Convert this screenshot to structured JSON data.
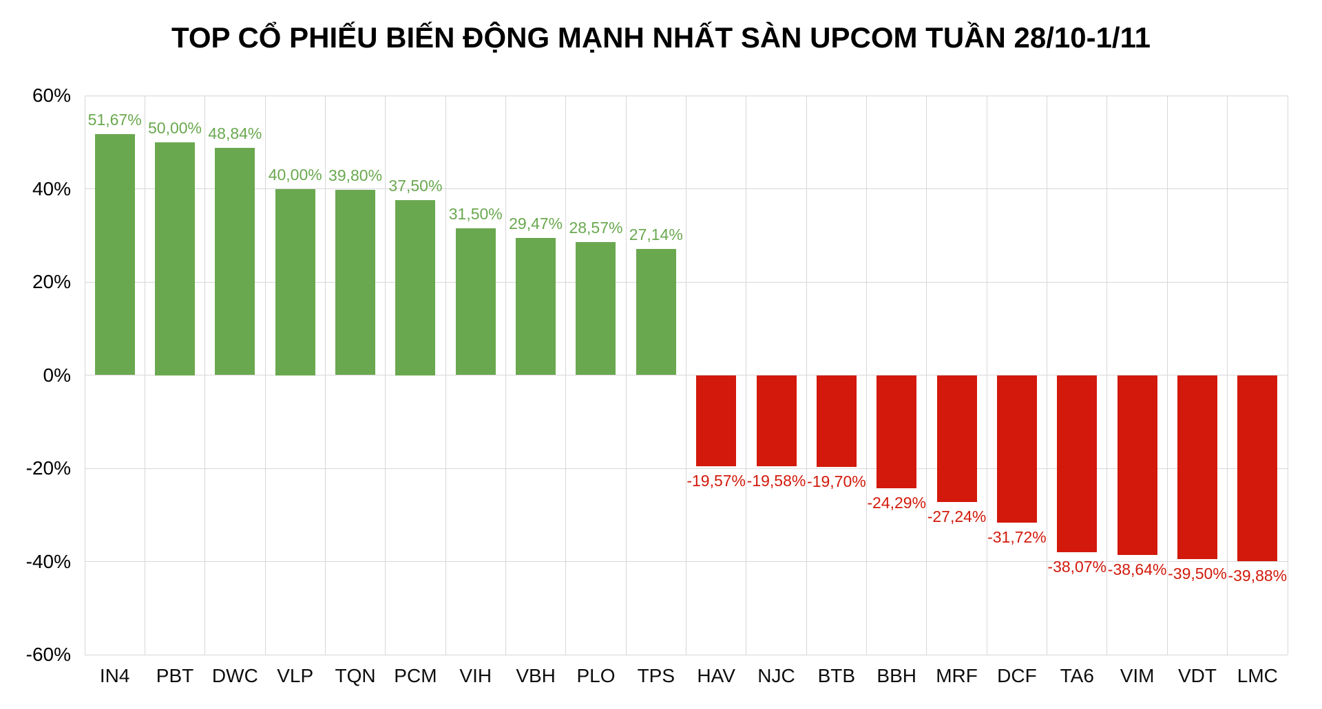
{
  "chart_data": {
    "type": "bar",
    "title": "TOP CỔ PHIẾU BIẾN ĐỘNG MẠNH NHẤT SÀN UPCOM TUẦN 28/10-1/11",
    "categories": [
      "IN4",
      "PBT",
      "DWC",
      "VLP",
      "TQN",
      "PCM",
      "VIH",
      "VBH",
      "PLO",
      "TPS",
      "HAV",
      "NJC",
      "BTB",
      "BBH",
      "MRF",
      "DCF",
      "TA6",
      "VIM",
      "VDT",
      "LMC"
    ],
    "values": [
      51.67,
      50.0,
      48.84,
      40.0,
      39.8,
      37.5,
      31.5,
      29.47,
      28.57,
      27.14,
      -19.57,
      -19.58,
      -19.7,
      -24.29,
      -27.24,
      -31.72,
      -38.07,
      -38.64,
      -39.5,
      -39.88
    ],
    "value_labels": [
      "51,67%",
      "50,00%",
      "48,84%",
      "40,00%",
      "39,80%",
      "37,50%",
      "31,50%",
      "29,47%",
      "28,57%",
      "27,14%",
      "-19,57%",
      "-19,58%",
      "-19,70%",
      "-24,29%",
      "-27,24%",
      "-31,72%",
      "-38,07%",
      "-38,64%",
      "-39,50%",
      "-39,88%"
    ],
    "y_ticks": [
      "60%",
      "40%",
      "20%",
      "0%",
      "-20%",
      "-40%",
      "-60%"
    ],
    "ylim": [
      -60,
      60
    ],
    "xlabel": "",
    "ylabel": "",
    "grid": true,
    "legend_position": "none",
    "colors": {
      "positive": "#6aa84f",
      "negative": "#d2190b",
      "gridline": "#d9d6da",
      "axis_text": "#000000",
      "title_text": "#000000",
      "background": "#ffffff"
    }
  }
}
